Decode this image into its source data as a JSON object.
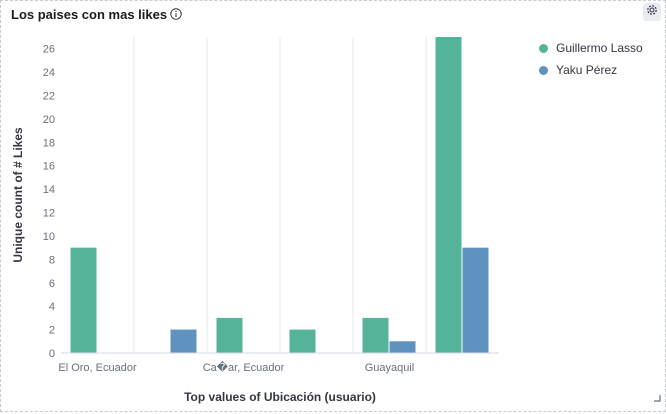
{
  "panel": {
    "title": "Los paises con mas likes",
    "info_icon": "info-circle-icon",
    "settings_icon": "gear-icon",
    "resize_icon": "resize-corner-icon"
  },
  "chart_data": {
    "type": "bar",
    "xlabel": "Top values of Ubicación (usuario)",
    "ylabel": "Unique count of # Likes",
    "ylim": [
      0,
      27
    ],
    "y_ticks": [
      0,
      2,
      4,
      6,
      8,
      10,
      12,
      14,
      16,
      18,
      20,
      22,
      24,
      26
    ],
    "grid": "vertical",
    "legend_position": "right",
    "x_tick_labels": [
      "El Oro, Ecuador",
      "Ca�ar, Ecuador",
      "Guayaquil"
    ],
    "categories": [
      "El Oro, Ecuador",
      "",
      "Ca�ar, Ecuador",
      "",
      "Guayaquil",
      ""
    ],
    "series": [
      {
        "name": "Guillermo Lasso",
        "color": "#54b399",
        "values": [
          9,
          0,
          3,
          2,
          3,
          27
        ]
      },
      {
        "name": "Yaku Pérez",
        "color": "#6092c0",
        "values": [
          0,
          2,
          0,
          0,
          1,
          9
        ]
      }
    ]
  }
}
